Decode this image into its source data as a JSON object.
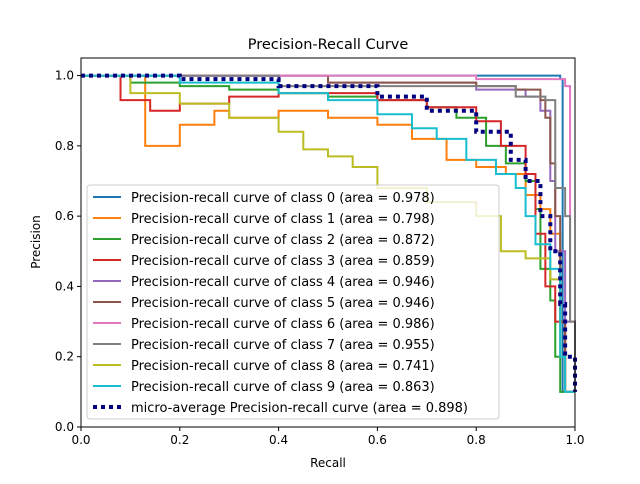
{
  "chart_data": {
    "type": "line",
    "title": "Precision-Recall Curve",
    "xlabel": "Recall",
    "ylabel": "Precision",
    "xlim": [
      0,
      1.0
    ],
    "ylim": [
      0,
      1.05
    ],
    "xticks": [
      "0.0",
      "0.2",
      "0.4",
      "0.6",
      "0.8",
      "1.0"
    ],
    "yticks": [
      "0.0",
      "0.2",
      "0.4",
      "0.6",
      "0.8",
      "1.0"
    ],
    "grid": false,
    "legend_position": "lower-left",
    "series": [
      {
        "name": "Precision-recall curve of class 0 (area = 0.978)",
        "color": "#1f77b4",
        "style": "solid",
        "x": [
          0,
          0.97,
          0.97,
          0.975,
          0.975,
          1.0
        ],
        "y": [
          1,
          1,
          0.99,
          0.99,
          0.1,
          0.1
        ]
      },
      {
        "name": "Precision-recall curve of class 1 (area = 0.798)",
        "color": "#ff7f0e",
        "style": "solid",
        "x": [
          0,
          0.13,
          0.2,
          0.27,
          0.3,
          0.3,
          0.4,
          0.5,
          0.6,
          0.67,
          0.74,
          0.8,
          0.86,
          0.9,
          0.93,
          0.95,
          0.97,
          0.98,
          1.0
        ],
        "y": [
          1,
          0.8,
          0.86,
          0.9,
          0.9,
          0.88,
          0.9,
          0.88,
          0.86,
          0.82,
          0.76,
          0.74,
          0.72,
          0.66,
          0.62,
          0.55,
          0.3,
          0.1,
          0.1
        ]
      },
      {
        "name": "Precision-recall curve of class 2 (area = 0.872)",
        "color": "#2ca02c",
        "style": "solid",
        "x": [
          0,
          0.1,
          0.2,
          0.3,
          0.4,
          0.5,
          0.6,
          0.7,
          0.76,
          0.82,
          0.86,
          0.9,
          0.92,
          0.93,
          0.95,
          0.96,
          0.97,
          1.0
        ],
        "y": [
          1,
          0.98,
          0.97,
          0.96,
          0.95,
          0.94,
          0.93,
          0.91,
          0.88,
          0.8,
          0.75,
          0.7,
          0.62,
          0.45,
          0.36,
          0.2,
          0.1,
          0.1
        ]
      },
      {
        "name": "Precision-recall curve of class 3 (area = 0.859)",
        "color": "#d62728",
        "style": "solid",
        "x": [
          0,
          0.08,
          0.14,
          0.2,
          0.3,
          0.4,
          0.5,
          0.6,
          0.7,
          0.8,
          0.85,
          0.9,
          0.92,
          0.94,
          0.96,
          0.98,
          1.0
        ],
        "y": [
          1,
          0.93,
          0.9,
          0.92,
          0.94,
          0.95,
          0.95,
          0.93,
          0.91,
          0.87,
          0.8,
          0.72,
          0.55,
          0.4,
          0.3,
          0.1,
          0.1
        ]
      },
      {
        "name": "Precision-recall curve of class 4 (area = 0.946)",
        "color": "#9467bd",
        "style": "solid",
        "x": [
          0,
          0.5,
          0.8,
          0.9,
          0.93,
          0.95,
          0.96,
          0.98,
          1.0
        ],
        "y": [
          1,
          0.98,
          0.96,
          0.94,
          0.9,
          0.7,
          0.5,
          0.3,
          0.1
        ]
      },
      {
        "name": "Precision-recall curve of class 5 (area = 0.946)",
        "color": "#8c564b",
        "style": "solid",
        "x": [
          0,
          0.5,
          0.8,
          0.88,
          0.93,
          0.94,
          0.95,
          0.96,
          0.97,
          0.98,
          1.0
        ],
        "y": [
          1,
          0.98,
          0.97,
          0.96,
          0.93,
          0.88,
          0.75,
          0.6,
          0.3,
          0.1,
          0.1
        ]
      },
      {
        "name": "Precision-recall curve of class 6 (area = 0.986)",
        "color": "#e377c2",
        "style": "solid",
        "x": [
          0,
          0.8,
          0.95,
          0.98,
          0.99,
          0.99,
          1.0
        ],
        "y": [
          1,
          0.99,
          0.99,
          0.97,
          0.7,
          0.3,
          0.1
        ]
      },
      {
        "name": "Precision-recall curve of class 7 (area = 0.955)",
        "color": "#7f7f7f",
        "style": "solid",
        "x": [
          0,
          0.4,
          0.88,
          0.94,
          0.96,
          0.96,
          0.98,
          0.99,
          1.0
        ],
        "y": [
          1,
          0.97,
          0.94,
          0.93,
          0.9,
          0.68,
          0.6,
          0.3,
          0.1
        ]
      },
      {
        "name": "Precision-recall curve of class 8 (area = 0.741)",
        "color": "#bcbd22",
        "style": "solid",
        "x": [
          0,
          0.1,
          0.2,
          0.3,
          0.4,
          0.45,
          0.5,
          0.55,
          0.6,
          0.7,
          0.8,
          0.85,
          0.9,
          0.95,
          0.97,
          0.98,
          1.0
        ],
        "y": [
          1,
          0.95,
          0.92,
          0.88,
          0.84,
          0.79,
          0.77,
          0.74,
          0.68,
          0.64,
          0.6,
          0.5,
          0.48,
          0.42,
          0.2,
          0.1,
          0.1
        ]
      },
      {
        "name": "Precision-recall curve of class 9 (area = 0.863)",
        "color": "#17becf",
        "style": "solid",
        "x": [
          0,
          0.2,
          0.4,
          0.5,
          0.6,
          0.67,
          0.72,
          0.78,
          0.84,
          0.88,
          0.9,
          0.92,
          0.95,
          0.97,
          0.98,
          1.0
        ],
        "y": [
          1,
          0.98,
          0.95,
          0.93,
          0.89,
          0.85,
          0.82,
          0.76,
          0.72,
          0.68,
          0.6,
          0.52,
          0.45,
          0.2,
          0.1,
          0.1
        ]
      },
      {
        "name": "micro-average Precision-recall curve (area = 0.898)",
        "color": "#000080",
        "style": "dotted",
        "x": [
          0,
          0.2,
          0.4,
          0.6,
          0.7,
          0.8,
          0.87,
          0.9,
          0.93,
          0.95,
          0.97,
          0.98,
          1.0
        ],
        "y": [
          1,
          0.99,
          0.97,
          0.94,
          0.9,
          0.84,
          0.76,
          0.7,
          0.6,
          0.5,
          0.35,
          0.2,
          0.1
        ]
      }
    ]
  }
}
